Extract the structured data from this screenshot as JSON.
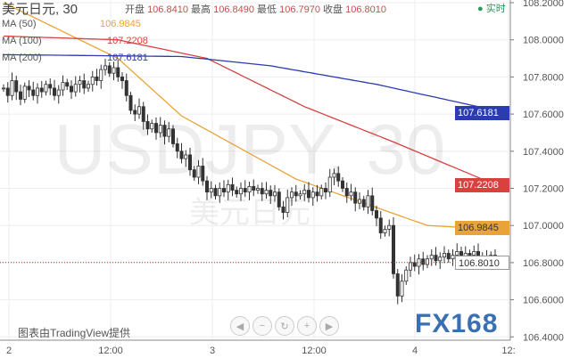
{
  "header": {
    "symbol": "美元日元, 30",
    "open_label": "开盘",
    "open": "106.8410",
    "high_label": "最高",
    "high": "106.8490",
    "low_label": "最低",
    "low": "106.7970",
    "close_label": "收盘",
    "close": "106.8010",
    "live": "实时"
  },
  "legend": [
    {
      "name": "MA (50)",
      "value": "106.9845",
      "color": "#e8a33a"
    },
    {
      "name": "MA (100)",
      "value": "107.2208",
      "color": "#d9413f"
    },
    {
      "name": "MA (200)",
      "value": "107.6181",
      "color": "#2b3bb0"
    }
  ],
  "watermark": {
    "line1": "USDJPY, 30",
    "line2": "美元日元"
  },
  "credit": "图表由TradingView提供",
  "logo": "FX168",
  "nav_buttons": [
    "◀",
    "−",
    "↻",
    "+",
    "▶"
  ],
  "last_price": "106.8010",
  "chart_data": {
    "type": "candlestick",
    "ylim": [
      106.4,
      108.2
    ],
    "y_ticks": [
      "108.2000",
      "108.0000",
      "107.8000",
      "107.6000",
      "107.4000",
      "107.2000",
      "107.0000",
      "106.8000",
      "106.6000",
      "106.4000"
    ],
    "x_ticks": [
      "2",
      "12:00",
      "3",
      "12:00",
      "4",
      "12:"
    ],
    "closes": [
      107.74,
      107.7,
      107.78,
      107.72,
      107.68,
      107.75,
      107.73,
      107.7,
      107.74,
      107.72,
      107.76,
      107.74,
      107.7,
      107.73,
      107.77,
      107.75,
      107.72,
      107.76,
      107.78,
      107.74,
      107.76,
      107.8,
      107.78,
      107.84,
      107.86,
      107.82,
      107.85,
      107.8,
      107.78,
      107.7,
      107.62,
      107.6,
      107.64,
      107.56,
      107.52,
      107.55,
      107.5,
      107.54,
      107.48,
      107.52,
      107.44,
      107.4,
      107.36,
      107.38,
      107.3,
      107.26,
      107.32,
      107.24,
      107.18,
      107.2,
      107.16,
      107.2,
      107.18,
      107.22,
      107.19,
      107.17,
      107.2,
      107.18,
      107.21,
      107.19,
      107.2,
      107.17,
      107.19,
      107.16,
      107.18,
      107.1,
      107.07,
      107.15,
      107.18,
      107.16,
      107.17,
      107.19,
      107.15,
      107.18,
      107.16,
      107.2,
      107.18,
      107.26,
      107.28,
      107.24,
      107.2,
      107.16,
      107.18,
      107.12,
      107.14,
      107.1,
      107.16,
      107.08,
      107.04,
      106.96,
      106.98,
      107.0,
      106.74,
      106.62,
      106.7,
      106.76,
      106.8,
      106.78,
      106.82,
      106.79,
      106.82,
      106.84,
      106.81,
      106.83,
      106.85,
      106.82,
      106.84,
      106.86,
      106.83,
      106.85,
      106.84,
      106.86,
      106.82,
      106.83,
      106.81,
      106.84,
      106.8
    ],
    "ma": [
      {
        "name": "MA (50)",
        "color": "#e8a33a",
        "points": [
          [
            0,
            108.2
          ],
          [
            27,
            107.9
          ],
          [
            42,
            107.59
          ],
          [
            69,
            107.25
          ],
          [
            100,
            107.0
          ],
          [
            116,
            106.98
          ]
        ]
      },
      {
        "name": "MA (100)",
        "color": "#d9413f",
        "points": [
          [
            0,
            108.02
          ],
          [
            27,
            108.0
          ],
          [
            48,
            107.9
          ],
          [
            71,
            107.64
          ],
          [
            92,
            107.45
          ],
          [
            116,
            107.22
          ]
        ]
      },
      {
        "name": "MA (200)",
        "color": "#2b3bb0",
        "points": [
          [
            0,
            107.92
          ],
          [
            42,
            107.91
          ],
          [
            63,
            107.86
          ],
          [
            88,
            107.76
          ],
          [
            116,
            107.62
          ]
        ]
      }
    ]
  }
}
